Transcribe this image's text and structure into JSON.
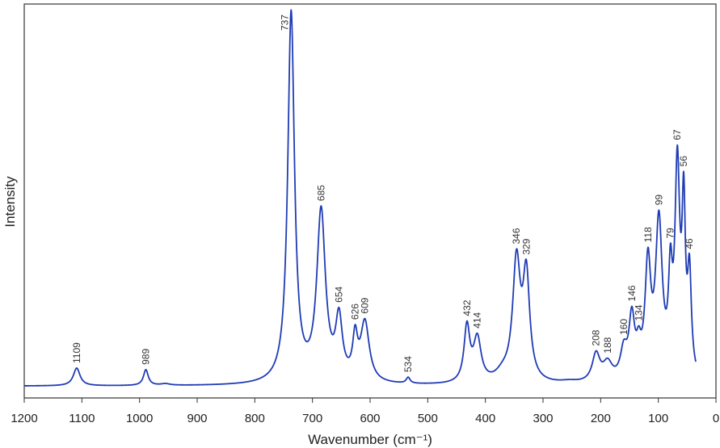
{
  "chart_data": {
    "type": "line",
    "title": "",
    "xlabel": "Wavenumber (cm⁻¹)",
    "ylabel": "Intensity",
    "xlim": [
      1200,
      0
    ],
    "x_reversed": true,
    "x_ticks": [
      1200,
      1100,
      1000,
      900,
      800,
      700,
      600,
      500,
      400,
      300,
      200,
      100,
      0
    ],
    "y_ticks_shown": false,
    "grid": false,
    "legend": "none",
    "line_color": "#1f3cb4",
    "series": [
      {
        "x_range": [
          1200,
          35
        ],
        "baseline": 0.03,
        "peaks": [
          {
            "x": 1109,
            "y": 0.045,
            "w": 7
          },
          {
            "x": 989,
            "y": 0.04,
            "w": 5
          },
          {
            "x": 955,
            "y": 0.004,
            "w": 10
          },
          {
            "x": 737,
            "y": 0.94,
            "w": 7
          },
          {
            "x": 685,
            "y": 0.43,
            "w": 9
          },
          {
            "x": 654,
            "y": 0.15,
            "w": 7
          },
          {
            "x": 626,
            "y": 0.1,
            "w": 5
          },
          {
            "x": 609,
            "y": 0.15,
            "w": 9
          },
          {
            "x": 534,
            "y": 0.015,
            "w": 4
          },
          {
            "x": 432,
            "y": 0.14,
            "w": 6
          },
          {
            "x": 414,
            "y": 0.11,
            "w": 8
          },
          {
            "x": 370,
            "y": 0.02,
            "w": 15
          },
          {
            "x": 346,
            "y": 0.3,
            "w": 8
          },
          {
            "x": 329,
            "y": 0.26,
            "w": 7
          },
          {
            "x": 255,
            "y": 0.005,
            "w": 20
          },
          {
            "x": 208,
            "y": 0.07,
            "w": 8
          },
          {
            "x": 188,
            "y": 0.045,
            "w": 10
          },
          {
            "x": 160,
            "y": 0.07,
            "w": 7
          },
          {
            "x": 146,
            "y": 0.15,
            "w": 6
          },
          {
            "x": 134,
            "y": 0.06,
            "w": 5
          },
          {
            "x": 118,
            "y": 0.28,
            "w": 6
          },
          {
            "x": 99,
            "y": 0.39,
            "w": 7
          },
          {
            "x": 79,
            "y": 0.22,
            "w": 4
          },
          {
            "x": 67,
            "y": 0.52,
            "w": 5
          },
          {
            "x": 56,
            "y": 0.4,
            "w": 3.5
          },
          {
            "x": 46,
            "y": 0.25,
            "w": 4
          }
        ]
      }
    ],
    "peak_labels": [
      {
        "x": 1109,
        "text": "1109"
      },
      {
        "x": 989,
        "text": "989"
      },
      {
        "x": 737,
        "text": "737"
      },
      {
        "x": 685,
        "text": "685"
      },
      {
        "x": 654,
        "text": "654"
      },
      {
        "x": 626,
        "text": "626"
      },
      {
        "x": 609,
        "text": "609"
      },
      {
        "x": 534,
        "text": "534"
      },
      {
        "x": 432,
        "text": "432"
      },
      {
        "x": 414,
        "text": "414"
      },
      {
        "x": 346,
        "text": "346"
      },
      {
        "x": 329,
        "text": "329"
      },
      {
        "x": 208,
        "text": "208"
      },
      {
        "x": 188,
        "text": "188"
      },
      {
        "x": 160,
        "text": "160"
      },
      {
        "x": 146,
        "text": "146"
      },
      {
        "x": 134,
        "text": "134"
      },
      {
        "x": 118,
        "text": "118"
      },
      {
        "x": 99,
        "text": "99"
      },
      {
        "x": 79,
        "text": "79"
      },
      {
        "x": 67,
        "text": "67"
      },
      {
        "x": 56,
        "text": "56"
      },
      {
        "x": 46,
        "text": "46"
      }
    ]
  }
}
